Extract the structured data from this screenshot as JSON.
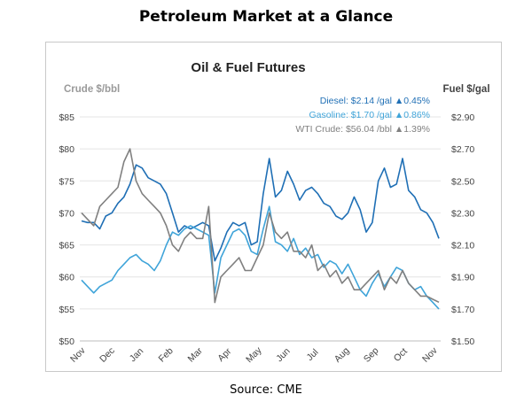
{
  "page": {
    "title": "Petroleum Market at a Glance",
    "source": "Source: CME"
  },
  "chart_data": {
    "type": "line",
    "title": "Oil & Fuel Futures",
    "y_left_label": "Crude $/bbl",
    "y_right_label": "Fuel $/gal",
    "y_left_ticks": [
      "$50",
      "$55",
      "$60",
      "$65",
      "$70",
      "$75",
      "$80",
      "$85"
    ],
    "y_right_ticks": [
      "$1.50",
      "$1.70",
      "$1.90",
      "$2.10",
      "$2.30",
      "$2.50",
      "$2.70",
      "$2.90"
    ],
    "x_ticks": [
      "Nov",
      "Dec",
      "Jan",
      "Feb",
      "Mar",
      "Apr",
      "May",
      "Jun",
      "Jul",
      "Aug",
      "Sep",
      "Oct",
      "Nov"
    ],
    "ylim_left": [
      50,
      85
    ],
    "ylim_right": [
      1.5,
      2.9
    ],
    "grid": true,
    "legend_position": "top-right",
    "legend": [
      {
        "label": "Diesel:",
        "value": "$2.14 /gal",
        "change": "▲0.45%",
        "color": "#1f6fb5"
      },
      {
        "label": "Gasoline:",
        "value": "$1.70 /gal",
        "change": "▲0.86%",
        "color": "#3fa4d9"
      },
      {
        "label": "WTI Crude:",
        "value": "$56.04 /bbl",
        "change": "▲1.39%",
        "color": "#808080"
      }
    ],
    "series": [
      {
        "name": "Diesel",
        "axis": "right",
        "color": "#1f6fb5",
        "values": [
          2.25,
          2.24,
          2.24,
          2.2,
          2.28,
          2.3,
          2.36,
          2.4,
          2.48,
          2.6,
          2.58,
          2.52,
          2.5,
          2.48,
          2.42,
          2.3,
          2.18,
          2.22,
          2.2,
          2.22,
          2.24,
          2.22,
          2.0,
          2.08,
          2.18,
          2.24,
          2.22,
          2.24,
          2.1,
          2.12,
          2.42,
          2.64,
          2.4,
          2.44,
          2.56,
          2.48,
          2.38,
          2.44,
          2.46,
          2.42,
          2.36,
          2.34,
          2.28,
          2.26,
          2.3,
          2.4,
          2.32,
          2.18,
          2.24,
          2.5,
          2.58,
          2.46,
          2.48,
          2.64,
          2.44,
          2.4,
          2.32,
          2.3,
          2.24,
          2.14
        ]
      },
      {
        "name": "Gasoline",
        "axis": "right",
        "color": "#3fa4d9",
        "values": [
          1.88,
          1.84,
          1.8,
          1.84,
          1.86,
          1.88,
          1.94,
          1.98,
          2.02,
          2.04,
          2.0,
          1.98,
          1.94,
          2.0,
          2.1,
          2.18,
          2.16,
          2.2,
          2.22,
          2.2,
          2.18,
          2.16,
          1.8,
          2.02,
          2.1,
          2.18,
          2.2,
          2.16,
          2.06,
          2.04,
          2.2,
          2.34,
          2.12,
          2.1,
          2.06,
          2.14,
          2.04,
          2.08,
          2.02,
          2.04,
          1.96,
          2.0,
          1.98,
          1.92,
          1.98,
          1.9,
          1.82,
          1.78,
          1.86,
          1.92,
          1.84,
          1.9,
          1.96,
          1.94,
          1.86,
          1.82,
          1.84,
          1.78,
          1.74,
          1.7
        ]
      },
      {
        "name": "WTI Crude",
        "axis": "left",
        "color": "#808080",
        "values": [
          70,
          69,
          68,
          71,
          72,
          73,
          74,
          78,
          80,
          75,
          73,
          72,
          71,
          70,
          68,
          65,
          64,
          66,
          67,
          66,
          66,
          71,
          56,
          60,
          61,
          62,
          63,
          61,
          61,
          63,
          65,
          70,
          67,
          66,
          67,
          64,
          64,
          63,
          65,
          61,
          62,
          60,
          61,
          59,
          60,
          58,
          58,
          59,
          60,
          61,
          58,
          60,
          59,
          61,
          59,
          58,
          57,
          57,
          56.5,
          56.04
        ]
      }
    ]
  }
}
